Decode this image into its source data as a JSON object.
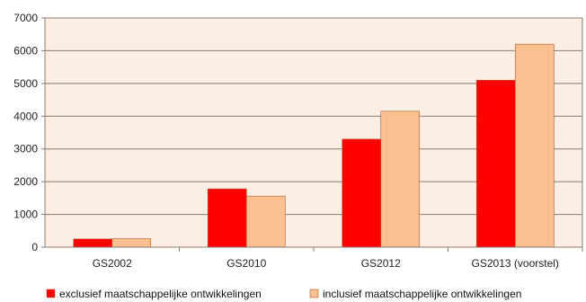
{
  "chart_data": {
    "type": "bar",
    "categories": [
      "GS2002",
      "GS2010",
      "GS2012",
      "GS2013 (voorstel)"
    ],
    "series": [
      {
        "name": "exclusief maatschappelijke ontwikkelingen",
        "values": [
          250,
          1780,
          3300,
          5100
        ],
        "color": "#ff0000"
      },
      {
        "name": "inclusief maatschappelijke ontwikkelingen",
        "values": [
          260,
          1560,
          4150,
          6200
        ],
        "color": "#fac090"
      }
    ],
    "ylim": [
      0,
      7000
    ],
    "yticks": [
      0,
      1000,
      2000,
      3000,
      4000,
      5000,
      6000,
      7000
    ],
    "grid": true,
    "legend": "bottom",
    "plot_background": "#fdeee3",
    "grid_color": "#8a7b72",
    "bar_outline": "#b05a2a",
    "title": "",
    "xlabel": "",
    "ylabel": ""
  }
}
